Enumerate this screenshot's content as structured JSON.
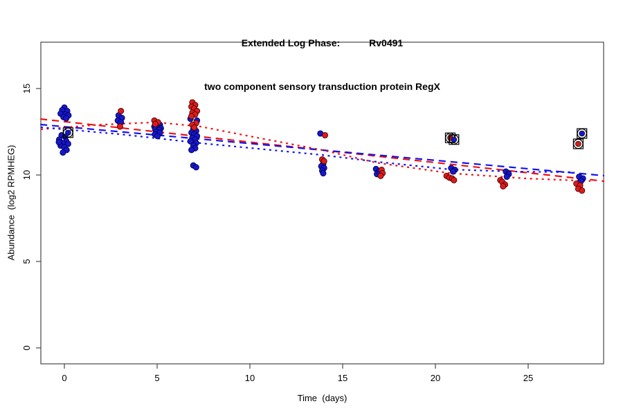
{
  "title": {
    "line1_left": "Extended Log Phase:",
    "line1_right": "Rv0491",
    "line2": "two component sensory transduction protein RegX"
  },
  "axes": {
    "x_label": "Time  (days)",
    "y_label": "Abundance  (log2 RPMHEG)",
    "x_ticks": [
      0,
      5,
      10,
      15,
      20,
      25
    ],
    "y_ticks": [
      0,
      5,
      10,
      15
    ]
  },
  "colors": {
    "blue_point_fill": "#1717cd",
    "blue_point_stroke": "#00004d",
    "red_point_fill": "#dc1c1c",
    "red_point_stroke": "#4d0000",
    "red_line": "#ee1111",
    "blue_line": "#1111ee",
    "axis": "#454545",
    "flag_outline": "#000000"
  },
  "chart_data": {
    "type": "scatter",
    "title": "Extended Log Phase: Rv0491",
    "subtitle": "two component sensory transduction protein RegX",
    "xlabel": "Time (days)",
    "ylabel": "Abundance (log2 RPMHEG)",
    "xlim": [
      -1.3,
      29.1
    ],
    "ylim": [
      -0.9,
      17.7
    ],
    "grid": false,
    "legend": "none",
    "series": [
      {
        "name": "blue-replicates",
        "color": "#1717cd",
        "points": [
          [
            0.0,
            13.9
          ],
          [
            -0.12,
            13.75
          ],
          [
            0.15,
            13.7
          ],
          [
            -0.2,
            13.55
          ],
          [
            0.05,
            13.5
          ],
          [
            0.22,
            13.45
          ],
          [
            -0.05,
            13.35
          ],
          [
            0.1,
            13.28
          ],
          [
            -0.15,
            12.3
          ],
          [
            0.05,
            12.2
          ],
          [
            -0.28,
            12.05
          ],
          [
            0.1,
            11.95
          ],
          [
            -0.1,
            11.85
          ],
          [
            0.2,
            11.8
          ],
          [
            -0.2,
            11.7
          ],
          [
            0.0,
            11.6
          ],
          [
            0.12,
            11.45
          ],
          [
            -0.08,
            11.3
          ],
          [
            -0.3,
            11.9
          ],
          [
            2.92,
            13.45
          ],
          [
            3.1,
            13.3
          ],
          [
            2.88,
            13.15
          ],
          [
            3.05,
            13.05
          ],
          [
            5.0,
            12.95
          ],
          [
            5.15,
            12.9
          ],
          [
            4.85,
            12.8
          ],
          [
            5.05,
            12.75
          ],
          [
            5.2,
            12.7
          ],
          [
            4.9,
            12.65
          ],
          [
            5.1,
            12.6
          ],
          [
            4.95,
            12.5
          ],
          [
            5.15,
            12.45
          ],
          [
            4.88,
            12.35
          ],
          [
            5.02,
            12.25
          ],
          [
            6.8,
            13.25
          ],
          [
            7.15,
            13.15
          ],
          [
            6.95,
            12.65
          ],
          [
            7.1,
            12.55
          ],
          [
            6.85,
            12.45
          ],
          [
            7.0,
            12.35
          ],
          [
            7.15,
            12.25
          ],
          [
            6.9,
            12.15
          ],
          [
            7.05,
            12.05
          ],
          [
            6.8,
            11.95
          ],
          [
            7.1,
            11.85
          ],
          [
            6.95,
            11.7
          ],
          [
            7.05,
            11.55
          ],
          [
            6.85,
            11.45
          ],
          [
            6.95,
            10.55
          ],
          [
            7.1,
            10.45
          ],
          [
            13.8,
            12.4
          ],
          [
            13.95,
            10.65
          ],
          [
            13.85,
            10.5
          ],
          [
            14.0,
            10.4
          ],
          [
            13.9,
            10.25
          ],
          [
            13.95,
            10.1
          ],
          [
            16.8,
            10.35
          ],
          [
            16.95,
            10.2
          ],
          [
            16.85,
            10.05
          ],
          [
            17.0,
            10.1
          ],
          [
            20.85,
            10.4
          ],
          [
            21.05,
            10.3
          ],
          [
            20.95,
            10.2
          ],
          [
            23.8,
            10.2
          ],
          [
            23.95,
            10.05
          ],
          [
            23.85,
            9.9
          ],
          [
            27.75,
            9.9
          ],
          [
            27.95,
            9.8
          ],
          [
            27.85,
            9.65
          ]
        ]
      },
      {
        "name": "red-replicates",
        "color": "#dc1c1c",
        "points": [
          [
            3.05,
            13.7
          ],
          [
            3.0,
            12.8
          ],
          [
            4.85,
            13.15
          ],
          [
            5.05,
            13.05
          ],
          [
            4.9,
            12.95
          ],
          [
            6.9,
            14.2
          ],
          [
            7.05,
            14.05
          ],
          [
            6.85,
            13.95
          ],
          [
            7.0,
            13.85
          ],
          [
            7.15,
            13.7
          ],
          [
            6.9,
            13.6
          ],
          [
            7.05,
            13.5
          ],
          [
            6.85,
            13.4
          ],
          [
            7.1,
            13.0
          ],
          [
            6.9,
            12.9
          ],
          [
            7.0,
            12.75
          ],
          [
            14.05,
            12.3
          ],
          [
            13.9,
            10.9
          ],
          [
            14.0,
            10.8
          ],
          [
            17.1,
            10.3
          ],
          [
            17.15,
            10.1
          ],
          [
            17.05,
            9.95
          ],
          [
            20.6,
            9.95
          ],
          [
            20.75,
            9.85
          ],
          [
            20.9,
            9.8
          ],
          [
            21.0,
            9.7
          ],
          [
            23.5,
            9.7
          ],
          [
            23.6,
            9.6
          ],
          [
            23.75,
            9.45
          ],
          [
            23.65,
            9.35
          ],
          [
            27.6,
            9.5
          ],
          [
            27.8,
            9.4
          ],
          [
            27.7,
            9.2
          ],
          [
            27.9,
            9.1
          ]
        ]
      }
    ],
    "flagged_points": [
      {
        "x": 0.2,
        "y": 12.45,
        "color": "blue"
      },
      {
        "x": 20.8,
        "y": 12.15,
        "color": "red"
      },
      {
        "x": 21.0,
        "y": 12.05,
        "color": "blue"
      },
      {
        "x": 27.7,
        "y": 11.8,
        "color": "red"
      },
      {
        "x": 27.9,
        "y": 12.4,
        "color": "blue"
      }
    ],
    "trend_lines": [
      {
        "name": "red-dashed-fit",
        "style": "dashed",
        "color": "#ee1111",
        "points": [
          [
            -1.3,
            13.24
          ],
          [
            29.1,
            9.64
          ]
        ]
      },
      {
        "name": "blue-dashed-fit",
        "style": "dashed",
        "color": "#1111ee",
        "points": [
          [
            -1.3,
            12.92
          ],
          [
            29.1,
            9.96
          ]
        ]
      },
      {
        "name": "red-dotted-fit",
        "style": "dotted",
        "color": "#ee1111",
        "points": [
          [
            -1.27,
            12.64
          ],
          [
            1.75,
            12.9
          ],
          [
            4.96,
            13.05
          ],
          [
            7.35,
            12.8
          ],
          [
            9.96,
            12.25
          ],
          [
            13.88,
            11.45
          ],
          [
            16.87,
            10.7
          ],
          [
            20.82,
            10.1
          ],
          [
            24.89,
            9.8
          ],
          [
            28.36,
            9.65
          ]
        ]
      },
      {
        "name": "blue-dotted-fit",
        "style": "dotted",
        "color": "#1111ee",
        "points": [
          [
            -1.27,
            12.76
          ],
          [
            2.99,
            12.36
          ],
          [
            7.35,
            11.84
          ],
          [
            13.88,
            11.16
          ],
          [
            16.87,
            10.76
          ],
          [
            20.82,
            10.32
          ],
          [
            24.14,
            10.2
          ],
          [
            27.5,
            10.16
          ]
        ]
      }
    ]
  }
}
